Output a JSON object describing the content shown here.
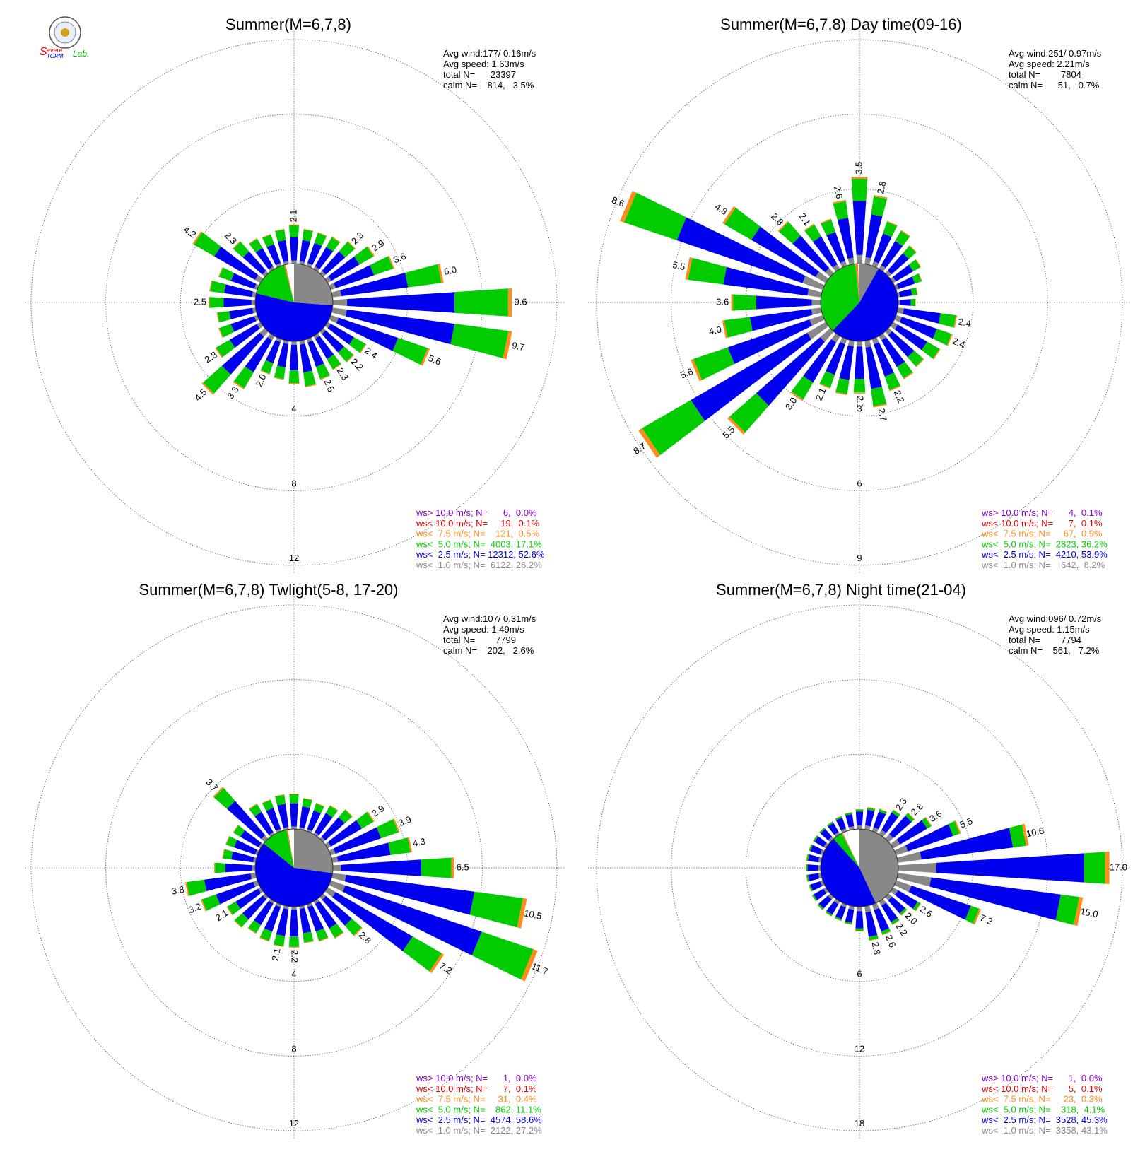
{
  "logo": {
    "text_s": "S",
    "text_evere": "evere",
    "text_storm": "TORM",
    "text_lab": "Lab."
  },
  "legend_colors": {
    "gt10": "#8800cc",
    "lt10": "#ee0000",
    "lt75": "#ff8c1a",
    "lt5": "#00cc00",
    "lt25": "#0000ee",
    "lt1": "#888888"
  },
  "chart_data": [
    {
      "type": "wind-rose",
      "title": "Summer(M=6,7,8)",
      "stats": {
        "avg_wind": "Avg wind:177/ 0.16m/s",
        "avg_speed": "Avg speed: 1.63m/s",
        "total": "total N=      23397",
        "calm": "calm N=    814,   3.5%"
      },
      "rings": [
        4,
        8,
        12
      ],
      "ring_labels": [
        "4",
        "8",
        "12"
      ],
      "calm_pie": [
        {
          "color": "#888888",
          "pct": 26.2
        },
        {
          "color": "#0000ee",
          "pct": 52.6
        },
        {
          "color": "#00cc00",
          "pct": 17.1
        },
        {
          "color": "#ff8c1a",
          "pct": 0.5
        },
        {
          "color": "#ee0000",
          "pct": 0.1
        }
      ],
      "totals": [
        2.1,
        1.9,
        1.9,
        2.0,
        2.3,
        2.9,
        3.6,
        6.0,
        9.6,
        9.7,
        5.6,
        2.4,
        2.2,
        2.1,
        2.3,
        2.5,
        2.3,
        2.1,
        2.0,
        3.3,
        4.5,
        2.8,
        2.2,
        2.1,
        2.5,
        2.5,
        2.2,
        4.2,
        2.3,
        1.9,
        1.8,
        1.9
      ],
      "fracs": [
        0.08,
        0.6,
        0.3,
        0.02
      ],
      "big": [
        [
          0,
          2.1
        ],
        [
          4,
          2.3
        ],
        [
          5,
          2.9
        ],
        [
          6,
          3.6
        ],
        [
          7,
          6.0
        ],
        [
          8,
          9.6
        ],
        [
          9,
          9.7
        ],
        [
          10,
          5.6
        ],
        [
          11,
          2.4
        ],
        [
          12,
          2.2
        ],
        [
          13,
          2.3
        ],
        [
          14,
          2.5
        ],
        [
          18,
          2.0
        ],
        [
          19,
          3.3
        ],
        [
          20,
          4.5
        ],
        [
          21,
          2.8
        ],
        [
          24,
          2.5
        ],
        [
          27,
          4.2
        ],
        [
          28,
          2.3
        ]
      ],
      "series": [
        {
          "name": "ws> 10.0 m/s; N=      6,  0.0%"
        },
        {
          "name": "ws< 10.0 m/s; N=     19,  0.1%"
        },
        {
          "name": "ws<  7.5 m/s; N=    121,  0.5%"
        },
        {
          "name": "ws<  5.0 m/s; N=  4003, 17.1%"
        },
        {
          "name": "ws<  2.5 m/s; N= 12312, 52.6%"
        },
        {
          "name": "ws<  1.0 m/s; N=  6122, 26.2%"
        }
      ]
    },
    {
      "type": "wind-rose",
      "title": "Summer(M=6,7,8) Day time(09-16)",
      "stats": {
        "avg_wind": "Avg wind:251/ 0.97m/s",
        "avg_speed": "Avg speed: 2.21m/s",
        "total": "total N=        7804",
        "calm": "calm N=      51,   0.7%"
      },
      "rings": [
        3,
        6,
        9
      ],
      "ring_labels": [
        "3",
        "6",
        "9"
      ],
      "calm_pie": [
        {
          "color": "#888888",
          "pct": 8.2
        },
        {
          "color": "#0000ee",
          "pct": 53.9
        },
        {
          "color": "#00cc00",
          "pct": 36.2
        },
        {
          "color": "#ff8c1a",
          "pct": 0.9
        },
        {
          "color": "#ee0000",
          "pct": 0.1
        }
      ],
      "totals": [
        3.5,
        2.8,
        1.9,
        1.8,
        1.5,
        1.3,
        1.1,
        0.8,
        0.7,
        2.4,
        2.4,
        2.2,
        1.9,
        2.0,
        2.2,
        2.7,
        2.1,
        2.2,
        2.1,
        3.0,
        5.5,
        8.7,
        5.6,
        4.0,
        3.6,
        5.5,
        8.6,
        4.8,
        2.8,
        2.1,
        2.0,
        2.6
      ],
      "fracs": [
        0.1,
        0.62,
        0.26,
        0.02
      ],
      "big": [
        [
          0,
          3.5
        ],
        [
          1,
          2.8
        ],
        [
          9,
          2.4
        ],
        [
          10,
          2.4
        ],
        [
          14,
          2.2
        ],
        [
          15,
          2.7
        ],
        [
          16,
          2.1
        ],
        [
          18,
          2.1
        ],
        [
          19,
          3.0
        ],
        [
          20,
          5.5
        ],
        [
          21,
          8.7
        ],
        [
          22,
          5.6
        ],
        [
          23,
          4.0
        ],
        [
          24,
          3.6
        ],
        [
          25,
          5.5
        ],
        [
          26,
          8.6
        ],
        [
          27,
          4.8
        ],
        [
          28,
          2.8
        ],
        [
          29,
          2.1
        ],
        [
          31,
          2.6
        ]
      ],
      "series": [
        {
          "name": "ws> 10.0 m/s; N=      4,  0.1%"
        },
        {
          "name": "ws< 10.0 m/s; N=      7,  0.1%"
        },
        {
          "name": "ws<  7.5 m/s; N=     67,  0.9%"
        },
        {
          "name": "ws<  5.0 m/s; N=  2823, 36.2%"
        },
        {
          "name": "ws<  2.5 m/s; N=  4210, 53.9%"
        },
        {
          "name": "ws<  1.0 m/s; N=    642,  8.2%"
        }
      ]
    },
    {
      "type": "wind-rose",
      "title": "Summer(M=6,7,8) Twlight(5-8, 17-20)",
      "stats": {
        "avg_wind": "Avg wind:107/ 0.31m/s",
        "avg_speed": "Avg speed: 1.49m/s",
        "total": "total N=        7799",
        "calm": "calm N=    202,   2.6%"
      },
      "rings": [
        4,
        8,
        12
      ],
      "ring_labels": [
        "4",
        "8",
        "12"
      ],
      "calm_pie": [
        {
          "color": "#888888",
          "pct": 27.2
        },
        {
          "color": "#0000ee",
          "pct": 58.6
        },
        {
          "color": "#00cc00",
          "pct": 11.1
        },
        {
          "color": "#ff8c1a",
          "pct": 0.4
        },
        {
          "color": "#ee0000",
          "pct": 0.1
        }
      ],
      "totals": [
        1.9,
        1.7,
        1.6,
        1.8,
        2.1,
        2.9,
        3.9,
        4.3,
        6.5,
        10.5,
        11.7,
        7.2,
        2.8,
        2.3,
        2.1,
        2.0,
        2.2,
        2.2,
        2.1,
        2.0,
        2.2,
        2.1,
        3.2,
        3.8,
        2.2,
        1.8,
        1.8,
        1.7,
        3.7,
        1.9,
        1.8,
        1.9
      ],
      "fracs": [
        0.07,
        0.66,
        0.25,
        0.02
      ],
      "big": [
        [
          5,
          2.9
        ],
        [
          6,
          3.9
        ],
        [
          7,
          4.3
        ],
        [
          8,
          6.5
        ],
        [
          9,
          10.5
        ],
        [
          10,
          11.7
        ],
        [
          11,
          7.2
        ],
        [
          12,
          2.8
        ],
        [
          16,
          2.2
        ],
        [
          17,
          2.1
        ],
        [
          21,
          2.1
        ],
        [
          22,
          3.2
        ],
        [
          23,
          3.8
        ],
        [
          28,
          3.7
        ]
      ],
      "series": [
        {
          "name": "ws> 10.0 m/s; N=      1,  0.0%"
        },
        {
          "name": "ws< 10.0 m/s; N=      7,  0.1%"
        },
        {
          "name": "ws<  7.5 m/s; N=     31,  0.4%"
        },
        {
          "name": "ws<  5.0 m/s; N=    862, 11.1%"
        },
        {
          "name": "ws<  2.5 m/s; N=  4574, 58.6%"
        },
        {
          "name": "ws<  1.0 m/s; N=  2122, 27.2%"
        }
      ]
    },
    {
      "type": "wind-rose",
      "title": "Summer(M=6,7,8) Night time(21-04)",
      "stats": {
        "avg_wind": "Avg wind:096/ 0.72m/s",
        "avg_speed": "Avg speed: 1.15m/s",
        "total": "total N=        7794",
        "calm": "calm N=    561,   7.2%"
      },
      "rings": [
        6,
        12,
        18
      ],
      "ring_labels": [
        "6",
        "12",
        "18"
      ],
      "calm_pie": [
        {
          "color": "#888888",
          "pct": 43.1
        },
        {
          "color": "#0000ee",
          "pct": 45.3
        },
        {
          "color": "#00cc00",
          "pct": 4.1
        },
        {
          "color": "#ff8c1a",
          "pct": 0.3
        },
        {
          "color": "#ee0000",
          "pct": 0.1
        }
      ],
      "totals": [
        1.6,
        1.8,
        1.9,
        2.3,
        2.8,
        3.6,
        5.5,
        10.6,
        17.0,
        15.0,
        7.2,
        2.6,
        2.0,
        2.2,
        2.6,
        2.8,
        2.0,
        1.5,
        1.4,
        1.4,
        1.4,
        1.3,
        1.2,
        1.2,
        1.2,
        1.2,
        1.2,
        1.2,
        1.2,
        1.2,
        1.3,
        1.4
      ],
      "fracs": [
        0.18,
        0.7,
        0.1,
        0.02
      ],
      "big": [
        [
          3,
          2.3
        ],
        [
          4,
          2.8
        ],
        [
          5,
          3.6
        ],
        [
          6,
          5.5
        ],
        [
          7,
          10.6
        ],
        [
          8,
          17.0
        ],
        [
          9,
          15.0
        ],
        [
          10,
          7.2
        ],
        [
          11,
          2.6
        ],
        [
          12,
          2.0
        ],
        [
          13,
          2.2
        ],
        [
          14,
          2.6
        ],
        [
          15,
          2.8
        ]
      ],
      "series": [
        {
          "name": "ws> 10.0 m/s; N=      1,  0.0%"
        },
        {
          "name": "ws< 10.0 m/s; N=      5,  0.1%"
        },
        {
          "name": "ws<  7.5 m/s; N=     23,  0.3%"
        },
        {
          "name": "ws<  5.0 m/s; N=    318,  4.1%"
        },
        {
          "name": "ws<  2.5 m/s; N=  3528, 45.3%"
        },
        {
          "name": "ws<  1.0 m/s; N=  3358, 43.1%"
        }
      ]
    }
  ]
}
